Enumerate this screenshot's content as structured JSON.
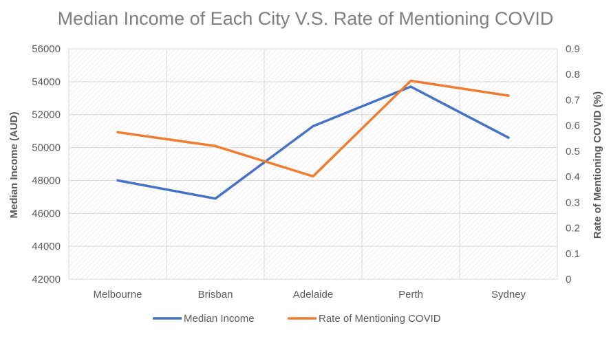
{
  "chart_data": {
    "type": "line",
    "title": "Median Income of Each City V.S. Rate of Mentioning COVID",
    "categories": [
      "Melbourne",
      "Brisban",
      "Adelaide",
      "Perth",
      "Sydney"
    ],
    "y_left": {
      "label": "Median Income (AUD)",
      "lim": [
        42000,
        56000
      ],
      "ticks": [
        "42000",
        "44000",
        "46000",
        "48000",
        "50000",
        "52000",
        "54000",
        "56000"
      ]
    },
    "y_right": {
      "label": "Rate of Mentioning COVID (%)",
      "lim": [
        0,
        0.9
      ],
      "ticks": [
        "0",
        "0.1",
        "0.2",
        "0.3",
        "0.4",
        "0.5",
        "0.6",
        "0.7",
        "0.8",
        "0.9"
      ]
    },
    "series": [
      {
        "name": "Median Income",
        "axis": "left",
        "color": "#4472c4",
        "values": [
          48000,
          46900,
          51300,
          53700,
          50600
        ]
      },
      {
        "name": "Rate of Mentioning COVID",
        "axis": "right",
        "color": "#ed7d31",
        "values": [
          0.574,
          0.52,
          0.402,
          0.775,
          0.717
        ]
      }
    ],
    "legend": "bottom",
    "grid": true
  }
}
